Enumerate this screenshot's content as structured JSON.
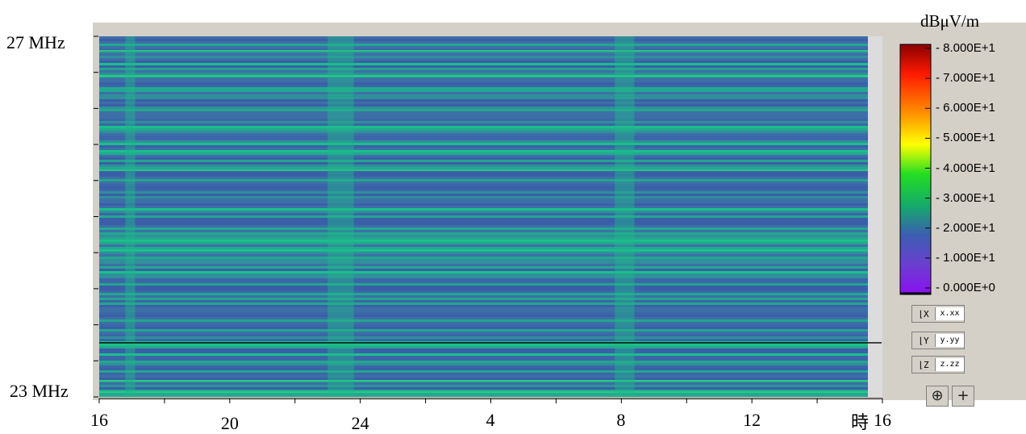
{
  "chart_data": {
    "type": "heatmap",
    "y_labels": [
      "27 MHz",
      "23 MHz"
    ],
    "ylim_mhz": [
      23,
      27
    ],
    "x_tick_labels": [
      "16",
      "20",
      "24",
      "4",
      "8",
      "12",
      "16"
    ],
    "x_unit": "時",
    "colorbar": {
      "unit": "dBμV/m",
      "ticks": [
        "8.000E+1",
        "7.000E+1",
        "6.000E+1",
        "5.000E+1",
        "4.000E+1",
        "3.000E+1",
        "2.000E+1",
        "1.000E+1",
        "0.000E+0"
      ],
      "range": [
        0,
        80
      ],
      "colors": [
        "#8b0000",
        "#ff2a00",
        "#ff8c00",
        "#ffff00",
        "#22dd22",
        "#16a86e",
        "#3b5fb0",
        "#6a3fd0",
        "#8a10f0"
      ]
    },
    "background_level_dbuv": 18,
    "bright_time_bands": [
      {
        "start_hour": 16.8,
        "end_hour": 17.1
      },
      {
        "start_hour": 23.0,
        "end_hour": 23.8
      },
      {
        "start_hour": 31.8,
        "end_hour": 32.4
      }
    ],
    "marker_line_mhz": 23.6
  },
  "controls": {
    "x_axis_button": "x.xx",
    "y_axis_button": "y.yy",
    "z_axis_button": "z.zz",
    "zoom_icon": "zoom-in-icon",
    "crosshair_icon": "+"
  }
}
